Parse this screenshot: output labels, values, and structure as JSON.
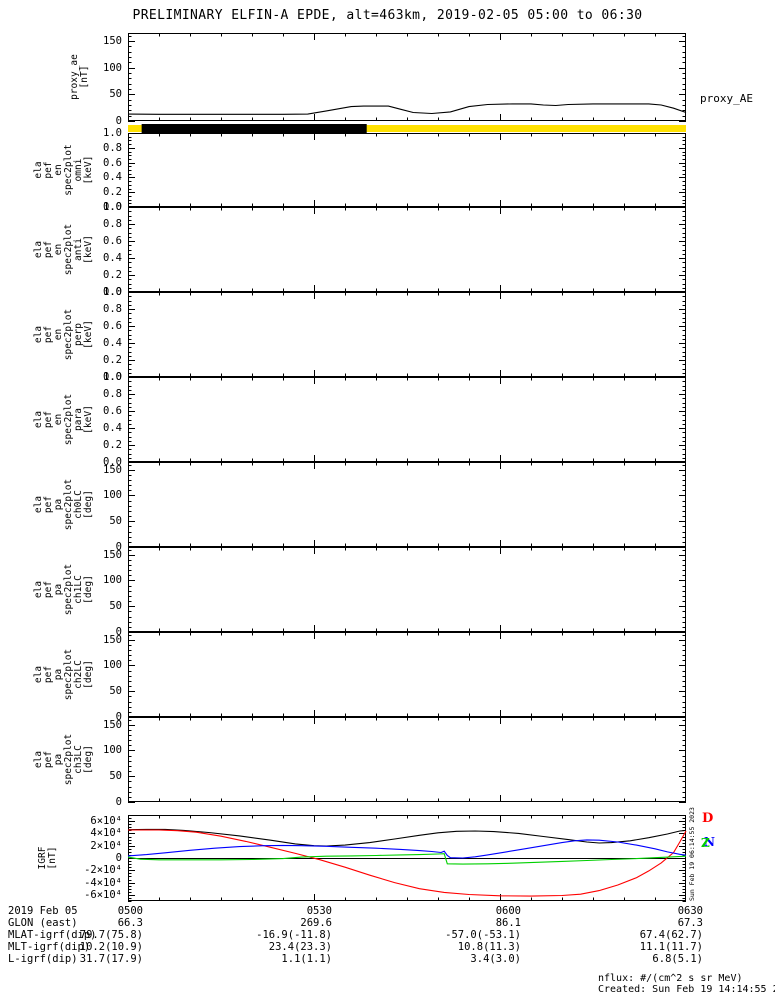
{
  "title": "PRELIMINARY ELFIN-A EPDE, alt=463km, 2019-02-05 05:00 to 06:30",
  "colors": {
    "background": "#ffffff",
    "axis": "#000000",
    "bar_yellow": "#ffe100",
    "bar_black": "#000000",
    "line_black": "#000000",
    "line_red": "#ff0000",
    "line_blue": "#0000ff",
    "line_green": "#00d000"
  },
  "right_labels": {
    "proxy_ae": "proxy_AE",
    "creation_vertical": "Sun Feb 19 06:14:55 2023",
    "igrf_legend": [
      {
        "text": "D",
        "color": "#ff0000"
      },
      {
        "text": "N",
        "color": "#0000ff"
      },
      {
        "text": "Z",
        "color": "#00d000"
      }
    ]
  },
  "footer": {
    "nflux": "nflux: #/(cm^2 s sr MeV)",
    "created": "Created: Sun Feb 19 14:14:55 2023"
  },
  "bottom_table": {
    "date_label": "2019 Feb 05",
    "time_ticks": [
      "0500",
      "0530",
      "0600",
      "0630"
    ],
    "row_labels": [
      "GLON (east)",
      "MLAT-igrf(dip)",
      "MLT-igrf(dip)",
      "L-igrf(dip)"
    ],
    "rows": [
      [
        "66.3",
        "269.6",
        "86.1",
        "67.3"
      ],
      [
        "79.7(75.8)",
        "-16.9(-11.8)",
        "-57.0(-53.1)",
        "67.4(62.7)"
      ],
      [
        "10.2(10.9)",
        "23.4(23.3)",
        "10.8(11.3)",
        "11.1(11.7)"
      ],
      [
        "31.7(17.9)",
        "1.1(1.1)",
        "3.4(3.0)",
        "6.8(5.1)"
      ]
    ]
  },
  "availability_bar": {
    "background_color": "#ffe100",
    "segments": [
      {
        "color": "#000000",
        "start_min": 2.2,
        "end_min": 38.5
      }
    ]
  },
  "xaxis": {
    "range_min": [
      0,
      90
    ],
    "start_label": "0500",
    "tick_minutes": [
      0,
      30,
      60,
      90
    ],
    "tick_labels": [
      "0500",
      "0530",
      "0600",
      "0630"
    ],
    "minor_step_min": 5
  },
  "chart_data": [
    {
      "id": "proxy_ae",
      "type": "line",
      "ylabel_lines": [
        "proxy_ae",
        "[nT]"
      ],
      "yrange": [
        0,
        165
      ],
      "y_minor_step": 10,
      "ytick_values": [
        0,
        50,
        100,
        150
      ],
      "ytick_labels": [
        "0",
        "50",
        "100",
        "150"
      ],
      "series": [
        {
          "name": "proxy_AE",
          "color": "#000000",
          "points": [
            [
              0,
              13
            ],
            [
              5,
              12.5
            ],
            [
              10,
              12.5
            ],
            [
              15,
              12.5
            ],
            [
              20,
              12.5
            ],
            [
              25,
              12.5
            ],
            [
              29,
              13
            ],
            [
              32,
              19
            ],
            [
              36,
              27
            ],
            [
              38,
              28
            ],
            [
              42,
              28
            ],
            [
              44,
              22
            ],
            [
              46,
              16
            ],
            [
              49,
              14
            ],
            [
              52,
              17
            ],
            [
              55,
              27
            ],
            [
              58,
              31
            ],
            [
              62,
              32
            ],
            [
              65,
              32
            ],
            [
              67,
              30
            ],
            [
              69,
              29
            ],
            [
              71,
              31
            ],
            [
              75,
              32
            ],
            [
              80,
              32
            ],
            [
              84,
              32
            ],
            [
              86,
              30
            ],
            [
              88,
              24
            ],
            [
              90,
              16
            ]
          ]
        }
      ]
    },
    {
      "id": "ela_pef_en_spec2plot_omni",
      "type": "spectrogram",
      "empty": true,
      "ylabel_lines": [
        "ela",
        "pef",
        "en",
        "spec2plot",
        "omni",
        "[keV]"
      ],
      "yrange": [
        0,
        1
      ],
      "y_minor_step": 0.05,
      "ytick_values": [
        0,
        0.2,
        0.4,
        0.6,
        0.8,
        1.0
      ],
      "ytick_labels": [
        "0.0",
        "0.2",
        "0.4",
        "0.6",
        "0.8",
        "1.0"
      ],
      "series": []
    },
    {
      "id": "ela_pef_en_spec2plot_anti",
      "type": "spectrogram",
      "empty": true,
      "ylabel_lines": [
        "ela",
        "pef",
        "en",
        "spec2plot",
        "anti",
        "[keV]"
      ],
      "yrange": [
        0,
        1
      ],
      "y_minor_step": 0.05,
      "ytick_values": [
        0,
        0.2,
        0.4,
        0.6,
        0.8,
        1.0
      ],
      "ytick_labels": [
        "0.0",
        "0.2",
        "0.4",
        "0.6",
        "0.8",
        "1.0"
      ],
      "series": []
    },
    {
      "id": "ela_pef_en_spec2plot_perp",
      "type": "spectrogram",
      "empty": true,
      "ylabel_lines": [
        "ela",
        "pef",
        "en",
        "spec2plot",
        "perp",
        "[keV]"
      ],
      "yrange": [
        0,
        1
      ],
      "y_minor_step": 0.05,
      "ytick_values": [
        0,
        0.2,
        0.4,
        0.6,
        0.8,
        1.0
      ],
      "ytick_labels": [
        "0.0",
        "0.2",
        "0.4",
        "0.6",
        "0.8",
        "1.0"
      ],
      "series": []
    },
    {
      "id": "ela_pef_en_spec2plot_para",
      "type": "spectrogram",
      "empty": true,
      "ylabel_lines": [
        "ela",
        "pef",
        "en",
        "spec2plot",
        "para",
        "[keV]"
      ],
      "yrange": [
        0,
        1
      ],
      "y_minor_step": 0.05,
      "ytick_values": [
        0,
        0.2,
        0.4,
        0.6,
        0.8,
        1.0
      ],
      "ytick_labels": [
        "0.0",
        "0.2",
        "0.4",
        "0.6",
        "0.8",
        "1.0"
      ],
      "series": []
    },
    {
      "id": "ela_pef_pa_spec2plot_ch0LC",
      "type": "spectrogram",
      "empty": true,
      "ylabel_lines": [
        "ela",
        "pef",
        "pa",
        "spec2plot",
        "ch0LC",
        "[deg]"
      ],
      "yrange": [
        0,
        165
      ],
      "y_minor_step": 10,
      "ytick_values": [
        0,
        50,
        100,
        150
      ],
      "ytick_labels": [
        "0",
        "50",
        "100",
        "150"
      ],
      "series": []
    },
    {
      "id": "ela_pef_pa_spec2plot_ch1LC",
      "type": "spectrogram",
      "empty": true,
      "ylabel_lines": [
        "ela",
        "pef",
        "pa",
        "spec2plot",
        "ch1LC",
        "[deg]"
      ],
      "yrange": [
        0,
        165
      ],
      "y_minor_step": 10,
      "ytick_values": [
        0,
        50,
        100,
        150
      ],
      "ytick_labels": [
        "0",
        "50",
        "100",
        "150"
      ],
      "series": []
    },
    {
      "id": "ela_pef_pa_spec2plot_ch2LC",
      "type": "spectrogram",
      "empty": true,
      "ylabel_lines": [
        "ela",
        "pef",
        "pa",
        "spec2plot",
        "ch2LC",
        "[deg]"
      ],
      "yrange": [
        0,
        165
      ],
      "y_minor_step": 10,
      "ytick_values": [
        0,
        50,
        100,
        150
      ],
      "ytick_labels": [
        "0",
        "50",
        "100",
        "150"
      ],
      "series": []
    },
    {
      "id": "ela_pef_pa_spec2plot_ch3LC",
      "type": "spectrogram",
      "empty": true,
      "ylabel_lines": [
        "ela",
        "pef",
        "pa",
        "spec2plot",
        "ch3LC",
        "[deg]"
      ],
      "yrange": [
        0,
        165
      ],
      "y_minor_step": 10,
      "ytick_values": [
        0,
        50,
        100,
        150
      ],
      "ytick_labels": [
        "0",
        "50",
        "100",
        "150"
      ],
      "series": []
    },
    {
      "id": "igrf",
      "type": "line",
      "zero_line": true,
      "ylabel_lines": [
        "IGRF",
        "[nT]"
      ],
      "yrange": [
        -70000,
        70000
      ],
      "y_minor_step": 5000,
      "ytick_values": [
        60000,
        40000,
        20000,
        0,
        -20000,
        -40000,
        -60000
      ],
      "ytick_labels": [
        "6×10⁴",
        "4×10⁴",
        "2×10⁴",
        "0",
        "-2×10⁴",
        "-4×10⁴",
        "-6×10⁴"
      ],
      "series": [
        {
          "name": "B_black",
          "color": "#000000",
          "points": [
            [
              0,
              46000
            ],
            [
              3,
              46500
            ],
            [
              6,
              46500
            ],
            [
              9,
              45000
            ],
            [
              13,
              41500
            ],
            [
              18,
              36000
            ],
            [
              23,
              29000
            ],
            [
              27,
              23000
            ],
            [
              30,
              20000
            ],
            [
              32,
              19500
            ],
            [
              35,
              21000
            ],
            [
              39,
              25000
            ],
            [
              43,
              31000
            ],
            [
              47,
              37000
            ],
            [
              50,
              41000
            ],
            [
              53,
              43500
            ],
            [
              56,
              44000
            ],
            [
              59,
              43000
            ],
            [
              63,
              40000
            ],
            [
              67,
              35000
            ],
            [
              71,
              30000
            ],
            [
              74,
              26000
            ],
            [
              76,
              24500
            ],
            [
              78,
              25000
            ],
            [
              81,
              28000
            ],
            [
              84,
              33000
            ],
            [
              87,
              39000
            ],
            [
              89,
              44000
            ],
            [
              90,
              45000
            ]
          ]
        },
        {
          "name": "B_red_D",
          "color": "#ff0000",
          "points": [
            [
              0,
              45500
            ],
            [
              5,
              45500
            ],
            [
              8,
              44500
            ],
            [
              11,
              42000
            ],
            [
              15,
              35500
            ],
            [
              19,
              27000
            ],
            [
              23,
              17500
            ],
            [
              27,
              7500
            ],
            [
              31,
              -3000
            ],
            [
              35,
              -15000
            ],
            [
              39,
              -28000
            ],
            [
              43,
              -40000
            ],
            [
              47,
              -50000
            ],
            [
              51,
              -56000
            ],
            [
              55,
              -59500
            ],
            [
              60,
              -61500
            ],
            [
              65,
              -62000
            ],
            [
              70,
              -61000
            ],
            [
              73,
              -59000
            ],
            [
              76,
              -53000
            ],
            [
              79,
              -44000
            ],
            [
              82,
              -32000
            ],
            [
              84,
              -21000
            ],
            [
              86,
              -8000
            ],
            [
              88,
              9000
            ],
            [
              89,
              26000
            ],
            [
              90,
              44000
            ]
          ]
        },
        {
          "name": "B_blue_N",
          "color": "#0000ff",
          "points": [
            [
              0,
              3500
            ],
            [
              3,
              5500
            ],
            [
              6,
              8500
            ],
            [
              10,
              12500
            ],
            [
              14,
              16000
            ],
            [
              18,
              18500
            ],
            [
              22,
              20000
            ],
            [
              25,
              20500
            ],
            [
              28,
              20000
            ],
            [
              32,
              19000
            ],
            [
              36,
              17500
            ],
            [
              40,
              16000
            ],
            [
              44,
              14000
            ],
            [
              47,
              12000
            ],
            [
              49,
              10500
            ],
            [
              50.5,
              9000
            ],
            [
              51,
              11000
            ],
            [
              51.5,
              4000
            ],
            [
              52,
              500
            ],
            [
              54,
              0
            ],
            [
              56,
              2000
            ],
            [
              58,
              5000
            ],
            [
              61,
              10000
            ],
            [
              64,
              15000
            ],
            [
              67,
              20000
            ],
            [
              70,
              25000
            ],
            [
              72,
              28000
            ],
            [
              74,
              29500
            ],
            [
              76,
              29000
            ],
            [
              79,
              26000
            ],
            [
              82,
              21000
            ],
            [
              85,
              15000
            ],
            [
              87,
              10000
            ],
            [
              89,
              6000
            ],
            [
              90,
              4500
            ]
          ]
        },
        {
          "name": "B_green_Z",
          "color": "#00d000",
          "points": [
            [
              0,
              1500
            ],
            [
              2,
              -2000
            ],
            [
              5,
              -3000
            ],
            [
              10,
              -3000
            ],
            [
              15,
              -3000
            ],
            [
              20,
              -2500
            ],
            [
              25,
              -1000
            ],
            [
              28,
              1500
            ],
            [
              32,
              3000
            ],
            [
              36,
              3500
            ],
            [
              40,
              4000
            ],
            [
              44,
              5000
            ],
            [
              47,
              5500
            ],
            [
              50,
              6500
            ],
            [
              51,
              7000
            ],
            [
              51.5,
              -9500
            ],
            [
              54,
              -10000
            ],
            [
              58,
              -9500
            ],
            [
              62,
              -8500
            ],
            [
              66,
              -7000
            ],
            [
              70,
              -5500
            ],
            [
              74,
              -4000
            ],
            [
              78,
              -2500
            ],
            [
              82,
              -1000
            ],
            [
              85,
              500
            ],
            [
              88,
              2000
            ],
            [
              90,
              3000
            ]
          ]
        }
      ]
    }
  ]
}
